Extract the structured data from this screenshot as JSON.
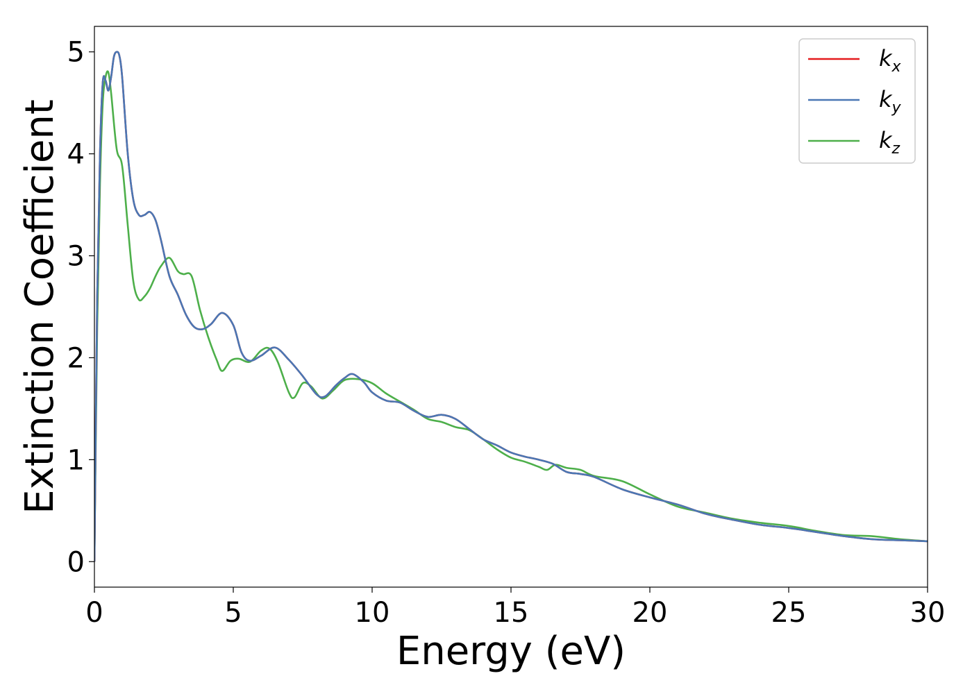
{
  "chart_data": {
    "type": "line",
    "xlabel": "Energy (eV)",
    "ylabel": "Extinction Coefficient",
    "xlim": [
      0,
      30
    ],
    "ylim": [
      -0.25,
      5.25
    ],
    "xticks": [
      0,
      5,
      10,
      15,
      20,
      25,
      30
    ],
    "yticks": [
      0,
      1,
      2,
      3,
      4,
      5
    ],
    "grid": false,
    "legend_position": "top-right",
    "series": [
      {
        "name": "k",
        "subscript": "x",
        "color": "#e41a1c",
        "x": [
          0,
          0.1,
          0.2,
          0.3,
          0.4,
          0.5,
          0.6,
          0.7,
          0.8,
          0.9,
          1.0,
          1.2,
          1.4,
          1.6,
          1.8,
          2.0,
          2.2,
          2.4,
          2.7,
          3.0,
          3.3,
          3.6,
          3.9,
          4.2,
          4.6,
          5.0,
          5.3,
          5.6,
          6.0,
          6.5,
          7.0,
          7.5,
          8.0,
          8.3,
          8.7,
          9.0,
          9.3,
          9.7,
          10.0,
          10.5,
          11.0,
          11.5,
          12.0,
          12.5,
          13.0,
          13.5,
          14.0,
          14.5,
          15.0,
          15.5,
          16.0,
          16.5,
          17.0,
          17.5,
          18.0,
          19.0,
          20.0,
          21.0,
          22.0,
          23.0,
          24.0,
          25.0,
          26.0,
          27.0,
          28.0,
          29.0,
          30.0
        ],
        "y": [
          0,
          2.6,
          4.0,
          4.7,
          4.72,
          4.62,
          4.75,
          4.95,
          5.0,
          4.96,
          4.75,
          4.0,
          3.55,
          3.4,
          3.4,
          3.43,
          3.35,
          3.15,
          2.8,
          2.62,
          2.42,
          2.3,
          2.28,
          2.33,
          2.44,
          2.32,
          2.05,
          1.97,
          2.02,
          2.1,
          1.98,
          1.82,
          1.64,
          1.62,
          1.73,
          1.8,
          1.84,
          1.76,
          1.66,
          1.58,
          1.56,
          1.48,
          1.42,
          1.44,
          1.4,
          1.3,
          1.2,
          1.14,
          1.07,
          1.03,
          1.0,
          0.96,
          0.88,
          0.86,
          0.83,
          0.71,
          0.63,
          0.56,
          0.47,
          0.41,
          0.36,
          0.33,
          0.29,
          0.25,
          0.22,
          0.21,
          0.2
        ]
      },
      {
        "name": "k",
        "subscript": "y",
        "color": "#4a77b4",
        "x": [
          0,
          0.1,
          0.2,
          0.3,
          0.4,
          0.5,
          0.6,
          0.7,
          0.8,
          0.9,
          1.0,
          1.2,
          1.4,
          1.6,
          1.8,
          2.0,
          2.2,
          2.4,
          2.7,
          3.0,
          3.3,
          3.6,
          3.9,
          4.2,
          4.6,
          5.0,
          5.3,
          5.6,
          6.0,
          6.5,
          7.0,
          7.5,
          8.0,
          8.3,
          8.7,
          9.0,
          9.3,
          9.7,
          10.0,
          10.5,
          11.0,
          11.5,
          12.0,
          12.5,
          13.0,
          13.5,
          14.0,
          14.5,
          15.0,
          15.5,
          16.0,
          16.5,
          17.0,
          17.5,
          18.0,
          19.0,
          20.0,
          21.0,
          22.0,
          23.0,
          24.0,
          25.0,
          26.0,
          27.0,
          28.0,
          29.0,
          30.0
        ],
        "y": [
          0,
          2.6,
          4.0,
          4.7,
          4.72,
          4.62,
          4.75,
          4.95,
          5.0,
          4.96,
          4.75,
          4.0,
          3.55,
          3.4,
          3.4,
          3.43,
          3.35,
          3.15,
          2.8,
          2.62,
          2.42,
          2.3,
          2.28,
          2.33,
          2.44,
          2.32,
          2.05,
          1.97,
          2.02,
          2.1,
          1.98,
          1.82,
          1.64,
          1.62,
          1.73,
          1.8,
          1.84,
          1.76,
          1.66,
          1.58,
          1.56,
          1.48,
          1.42,
          1.44,
          1.4,
          1.3,
          1.2,
          1.14,
          1.07,
          1.03,
          1.0,
          0.96,
          0.88,
          0.86,
          0.83,
          0.71,
          0.63,
          0.56,
          0.47,
          0.41,
          0.36,
          0.33,
          0.29,
          0.25,
          0.22,
          0.21,
          0.2
        ]
      },
      {
        "name": "k",
        "subscript": "z",
        "color": "#4daf4a",
        "x": [
          0,
          0.1,
          0.2,
          0.3,
          0.4,
          0.5,
          0.6,
          0.8,
          1.0,
          1.2,
          1.4,
          1.6,
          1.8,
          2.0,
          2.2,
          2.4,
          2.7,
          3.0,
          3.2,
          3.5,
          3.8,
          4.1,
          4.4,
          4.6,
          4.9,
          5.2,
          5.6,
          6.0,
          6.3,
          6.6,
          7.0,
          7.2,
          7.5,
          7.8,
          8.2,
          8.6,
          9.0,
          9.5,
          10.0,
          10.5,
          11.0,
          11.5,
          12.0,
          12.5,
          13.0,
          13.5,
          14.0,
          14.5,
          15.0,
          15.5,
          16.0,
          16.3,
          16.6,
          17.0,
          17.5,
          18.0,
          19.0,
          20.0,
          21.0,
          22.0,
          23.0,
          24.0,
          25.0,
          26.0,
          27.0,
          28.0,
          29.0,
          30.0
        ],
        "y": [
          0,
          2.3,
          3.7,
          4.5,
          4.75,
          4.8,
          4.6,
          4.05,
          3.88,
          3.3,
          2.75,
          2.57,
          2.6,
          2.68,
          2.8,
          2.9,
          2.98,
          2.85,
          2.82,
          2.8,
          2.47,
          2.2,
          1.98,
          1.87,
          1.97,
          1.99,
          1.96,
          2.07,
          2.09,
          1.96,
          1.66,
          1.61,
          1.75,
          1.72,
          1.6,
          1.68,
          1.78,
          1.79,
          1.75,
          1.65,
          1.57,
          1.49,
          1.4,
          1.37,
          1.32,
          1.29,
          1.2,
          1.1,
          1.02,
          0.98,
          0.93,
          0.9,
          0.95,
          0.92,
          0.9,
          0.84,
          0.79,
          0.66,
          0.54,
          0.48,
          0.42,
          0.38,
          0.35,
          0.3,
          0.26,
          0.25,
          0.22,
          0.2
        ]
      }
    ]
  }
}
